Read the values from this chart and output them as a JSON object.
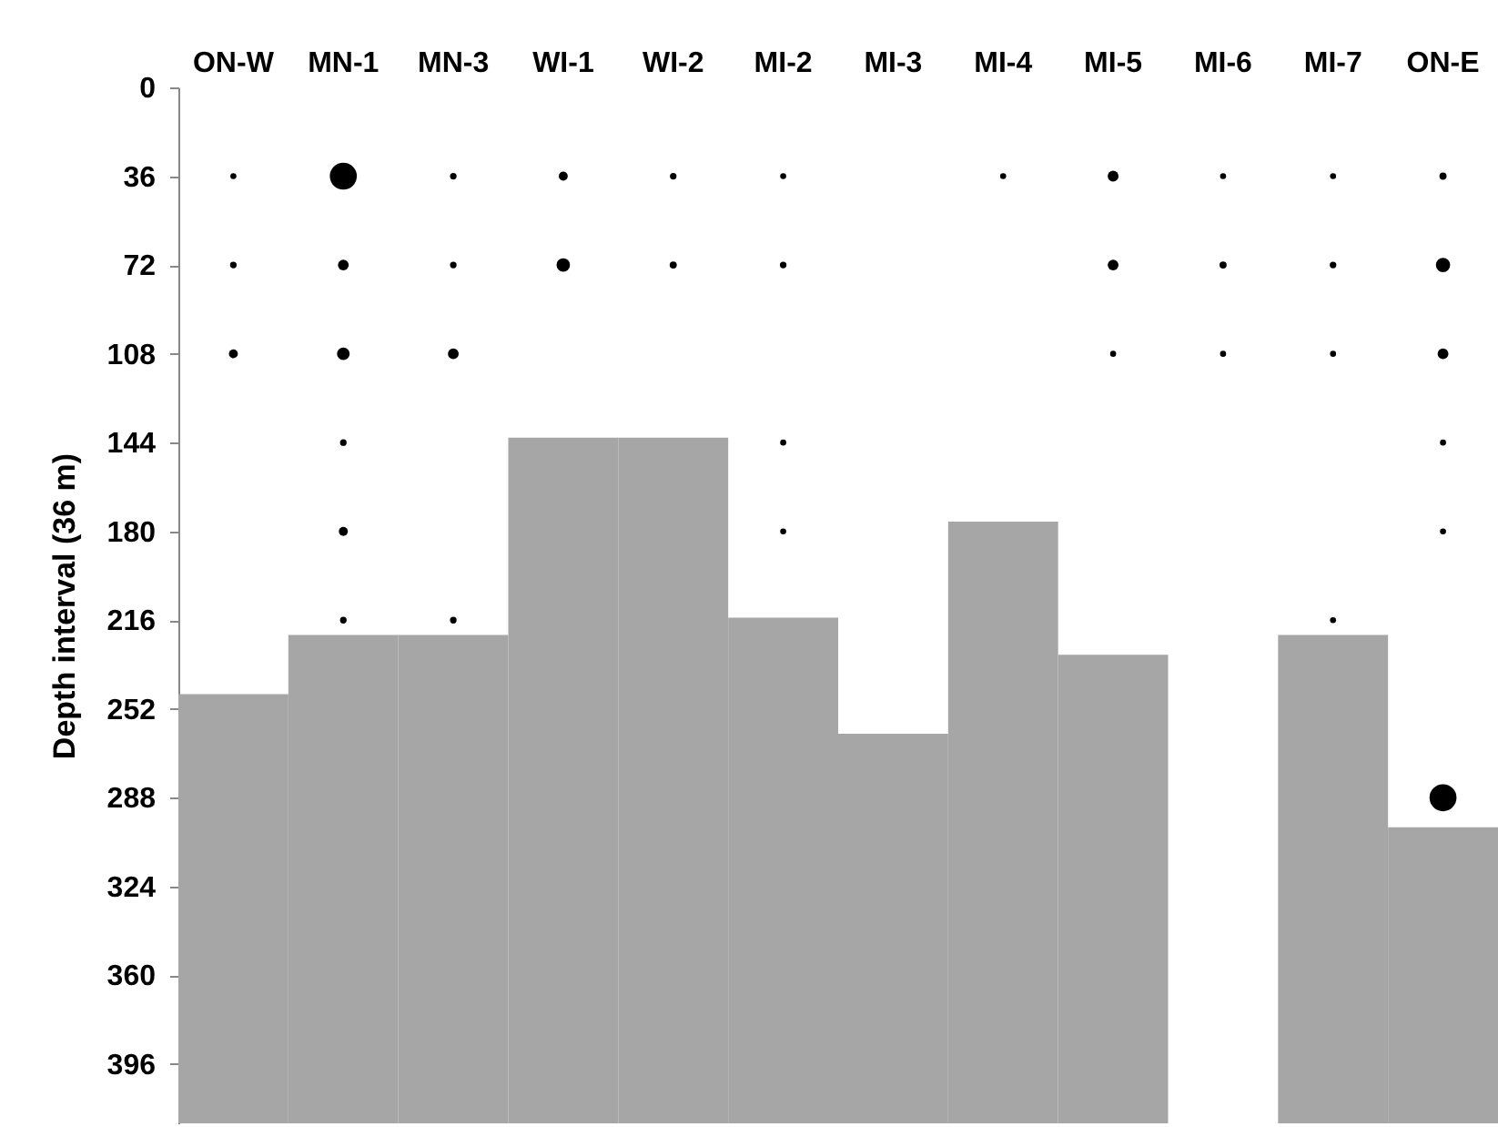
{
  "chart_data": {
    "type": "bubble",
    "ylabel": "Depth interval (36 m)",
    "categories": [
      "ON-W",
      "MN-1",
      "MN-3",
      "WI-1",
      "WI-2",
      "MI-2",
      "MI-3",
      "MI-4",
      "MI-5",
      "MI-6",
      "MI-7",
      "ON-E"
    ],
    "ylim": [
      420,
      0
    ],
    "yticks": [
      0,
      36,
      72,
      108,
      144,
      180,
      216,
      252,
      288,
      324,
      360,
      396
    ],
    "series": [
      {
        "type": "bar",
        "color": "#a6a6a6",
        "base": [
          246,
          222,
          222,
          142,
          142,
          215,
          262,
          176,
          230,
          null,
          222,
          300
        ],
        "values": [
          174,
          198,
          198,
          278,
          278,
          205,
          158,
          244,
          190,
          null,
          198,
          120
        ]
      },
      {
        "color": "#000000",
        "x": [
          "ON-W",
          "MN-1",
          "MN-3",
          "WI-1",
          "WI-2",
          "MI-2",
          "MI-4",
          "MI-5",
          "MI-6",
          "MI-7",
          "ON-E",
          "ON-W",
          "MN-1",
          "MN-3",
          "WI-1",
          "WI-2",
          "MI-2",
          "MI-5",
          "MI-6",
          "MI-7",
          "ON-E",
          "ON-W",
          "MN-1",
          "MN-3",
          "MI-5",
          "MI-6",
          "MI-7",
          "ON-E",
          "MN-1",
          "MI-2",
          "ON-E",
          "MN-1",
          "MI-2",
          "ON-E",
          "MN-1",
          "MN-3",
          "MI-7",
          "ON-E"
        ],
        "values": [
          36,
          36,
          36,
          36,
          36,
          36,
          36,
          36,
          36,
          36,
          36,
          72,
          72,
          72,
          72,
          72,
          72,
          72,
          72,
          72,
          72,
          108,
          108,
          108,
          108,
          108,
          108,
          108,
          144,
          144,
          144,
          180,
          180,
          180,
          216,
          216,
          216,
          288
        ],
        "sizes": [
          0.05,
          1,
          0.06,
          0.11,
          0.06,
          0.05,
          0.05,
          0.16,
          0.05,
          0.05,
          0.07,
          0.06,
          0.16,
          0.06,
          0.25,
          0.07,
          0.06,
          0.16,
          0.07,
          0.06,
          0.28,
          0.11,
          0.22,
          0.16,
          0.05,
          0.05,
          0.05,
          0.16,
          0.06,
          0.05,
          0.05,
          0.11,
          0.05,
          0.05,
          0.06,
          0.06,
          0.05,
          1
        ]
      }
    ]
  }
}
